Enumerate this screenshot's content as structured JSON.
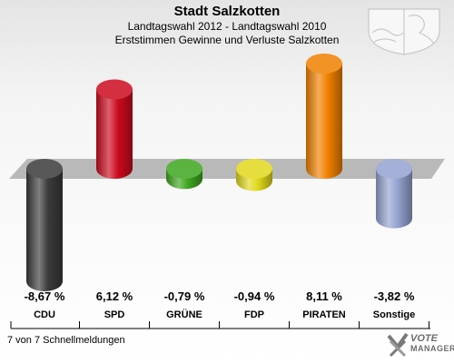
{
  "header": {
    "title": "Stadt Salzkotten",
    "subtitle": "Landtagswahl 2012 - Landtagswahl 2010",
    "subtitle2": "Erststimmen Gewinne und Verluste Salzkotten"
  },
  "footer": {
    "text": "7 von 7 Schnellmeldungen"
  },
  "logo": {
    "line1": "VOTE",
    "line2": "MANAGER"
  },
  "icons": {
    "crest": "coat-of-arms-icon",
    "logo": "vote-manager-logo-icon"
  },
  "chart_data": {
    "type": "bar",
    "title": "Stadt Salzkotten",
    "categories": [
      "CDU",
      "SPD",
      "GRÜNE",
      "FDP",
      "PIRATEN",
      "Sonstige"
    ],
    "values": [
      -8.67,
      6.12,
      -0.79,
      -0.94,
      8.11,
      -3.82
    ],
    "value_labels": [
      "-8,67 %",
      "6,12 %",
      "-0,79 %",
      "-0,94 %",
      "8,11 %",
      "-3,82 %"
    ],
    "colors": [
      "#3a3a3a",
      "#cc0a1e",
      "#3ea51e",
      "#e0d81c",
      "#f08000",
      "#94a2d0"
    ],
    "ylim": [
      -10,
      10
    ],
    "grid": false,
    "legend": "none"
  }
}
